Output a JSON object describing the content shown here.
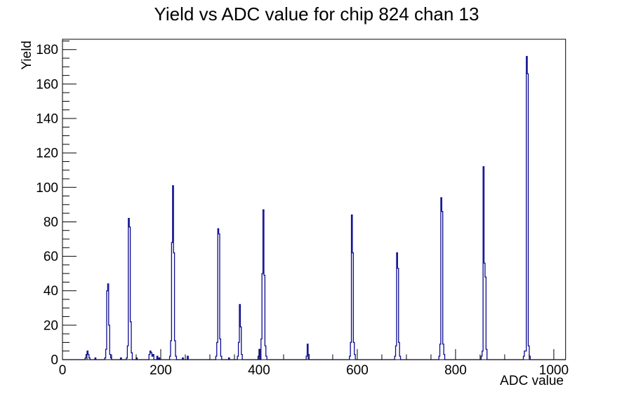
{
  "title": "Yield vs ADC value for chip 824 chan 13",
  "colors": {
    "histogram_line": "#0b0b90",
    "axis": "#000000",
    "background": "#ffffff"
  },
  "chart_data": {
    "type": "bar",
    "title": "Yield vs ADC value for chip 824 chan 13",
    "xlabel": "ADC value",
    "ylabel": "Yield",
    "xlim": [
      0,
      1024
    ],
    "ylim": [
      0,
      186
    ],
    "grid": false,
    "legend": false,
    "x_tick_values": [
      0,
      200,
      400,
      600,
      800,
      1000
    ],
    "x_tick_labels": [
      "0",
      "200",
      "400",
      "600",
      "800",
      "1000"
    ],
    "x_minor_step": 50,
    "y_tick_values": [
      0,
      20,
      40,
      60,
      80,
      100,
      120,
      140,
      160,
      180
    ],
    "y_tick_labels": [
      "0",
      "20",
      "40",
      "60",
      "80",
      "100",
      "120",
      "140",
      "160",
      "180"
    ],
    "y_minor_step": 5,
    "bin_width": 2,
    "bins": [
      [
        46,
        1
      ],
      [
        48,
        3
      ],
      [
        50,
        5
      ],
      [
        52,
        3
      ],
      [
        54,
        1
      ],
      [
        66,
        1
      ],
      [
        86,
        1
      ],
      [
        88,
        6
      ],
      [
        90,
        40
      ],
      [
        92,
        44
      ],
      [
        94,
        20
      ],
      [
        96,
        3
      ],
      [
        98,
        1
      ],
      [
        118,
        1
      ],
      [
        130,
        1
      ],
      [
        132,
        8
      ],
      [
        134,
        82
      ],
      [
        136,
        77
      ],
      [
        138,
        22
      ],
      [
        140,
        4
      ],
      [
        150,
        1
      ],
      [
        176,
        3
      ],
      [
        178,
        5
      ],
      [
        180,
        4
      ],
      [
        182,
        2
      ],
      [
        184,
        3
      ],
      [
        192,
        2
      ],
      [
        196,
        1
      ],
      [
        218,
        2
      ],
      [
        220,
        11
      ],
      [
        222,
        68
      ],
      [
        224,
        101
      ],
      [
        226,
        62
      ],
      [
        228,
        11
      ],
      [
        230,
        2
      ],
      [
        244,
        1
      ],
      [
        254,
        2
      ],
      [
        312,
        2
      ],
      [
        314,
        10
      ],
      [
        316,
        76
      ],
      [
        318,
        73
      ],
      [
        320,
        12
      ],
      [
        322,
        2
      ],
      [
        338,
        1
      ],
      [
        356,
        2
      ],
      [
        358,
        10
      ],
      [
        360,
        32
      ],
      [
        362,
        19
      ],
      [
        364,
        3
      ],
      [
        398,
        2
      ],
      [
        400,
        6
      ],
      [
        404,
        12
      ],
      [
        406,
        50
      ],
      [
        408,
        87
      ],
      [
        410,
        49
      ],
      [
        412,
        8
      ],
      [
        414,
        2
      ],
      [
        496,
        2
      ],
      [
        498,
        9
      ],
      [
        500,
        3
      ],
      [
        584,
        2
      ],
      [
        586,
        10
      ],
      [
        588,
        84
      ],
      [
        590,
        62
      ],
      [
        592,
        10
      ],
      [
        594,
        3
      ],
      [
        676,
        2
      ],
      [
        678,
        8
      ],
      [
        680,
        62
      ],
      [
        682,
        53
      ],
      [
        684,
        10
      ],
      [
        686,
        2
      ],
      [
        766,
        2
      ],
      [
        768,
        9
      ],
      [
        770,
        94
      ],
      [
        772,
        86
      ],
      [
        774,
        9
      ],
      [
        776,
        3
      ],
      [
        852,
        2
      ],
      [
        854,
        5
      ],
      [
        856,
        112
      ],
      [
        858,
        56
      ],
      [
        860,
        48
      ],
      [
        862,
        6
      ],
      [
        938,
        2
      ],
      [
        940,
        5
      ],
      [
        942,
        5
      ],
      [
        944,
        176
      ],
      [
        946,
        166
      ],
      [
        948,
        8
      ],
      [
        950,
        2
      ]
    ],
    "peaks_summary": [
      {
        "adc": 92,
        "yield": 44
      },
      {
        "adc": 135,
        "yield": 82
      },
      {
        "adc": 224,
        "yield": 101
      },
      {
        "adc": 317,
        "yield": 76
      },
      {
        "adc": 361,
        "yield": 32
      },
      {
        "adc": 408,
        "yield": 87
      },
      {
        "adc": 499,
        "yield": 9
      },
      {
        "adc": 589,
        "yield": 84
      },
      {
        "adc": 681,
        "yield": 62
      },
      {
        "adc": 771,
        "yield": 94
      },
      {
        "adc": 857,
        "yield": 112
      },
      {
        "adc": 945,
        "yield": 176
      }
    ]
  }
}
